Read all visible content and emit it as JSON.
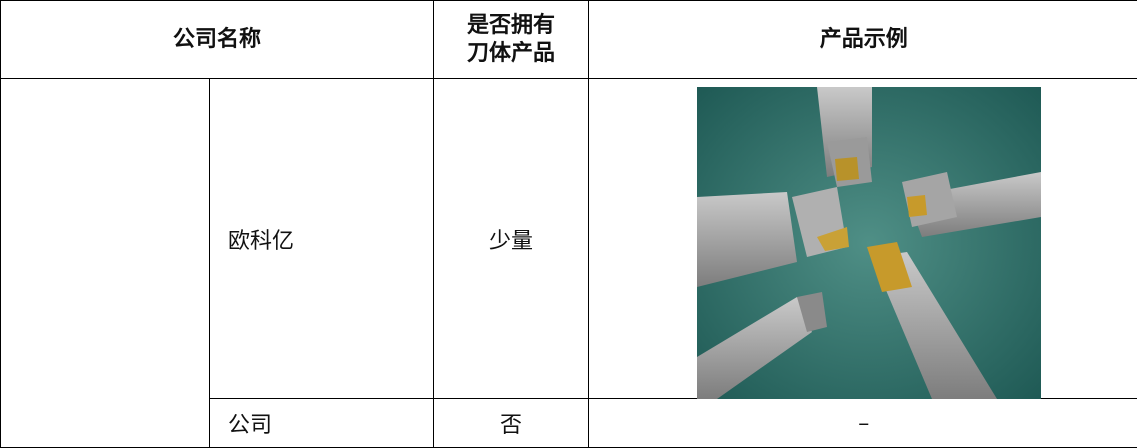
{
  "table": {
    "header": {
      "company": "公司名称",
      "has_body": [
        "是否拥有",
        "刀体产品"
      ],
      "example": "产品示例"
    },
    "rows": [
      [
        "欧科亿",
        "少量"
      ],
      [
        "公司",
        "否",
        "–"
      ]
    ]
  }
}
